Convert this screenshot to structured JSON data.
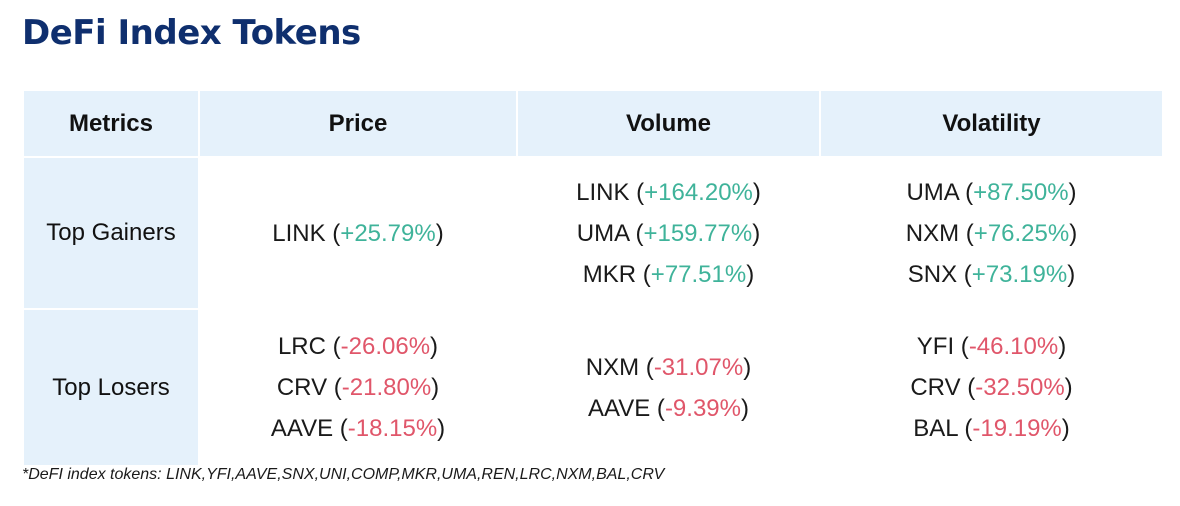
{
  "title": "DeFi Index Tokens",
  "colors": {
    "title": "#0f2f6e",
    "header_bg": "#e5f1fb",
    "positive": "#3fb39a",
    "negative": "#e0566a"
  },
  "table": {
    "headers": [
      "Metrics",
      "Price",
      "Volume",
      "Volatility"
    ],
    "rows": [
      {
        "label": "Top Gainers",
        "type": "gain",
        "price": [
          {
            "token": "LINK",
            "change": "+25.79%"
          }
        ],
        "volume": [
          {
            "token": "LINK",
            "change": "+164.20%"
          },
          {
            "token": "UMA",
            "change": "+159.77%"
          },
          {
            "token": "MKR",
            "change": "+77.51%"
          }
        ],
        "volatility": [
          {
            "token": "UMA",
            "change": "+87.50%"
          },
          {
            "token": "NXM",
            "change": "+76.25%"
          },
          {
            "token": "SNX",
            "change": "+73.19%"
          }
        ]
      },
      {
        "label": "Top Losers",
        "type": "loss",
        "price": [
          {
            "token": "LRC",
            "change": "-26.06%"
          },
          {
            "token": "CRV",
            "change": "-21.80%"
          },
          {
            "token": "AAVE",
            "change": "-18.15%"
          }
        ],
        "volume": [
          {
            "token": "NXM",
            "change": "-31.07%"
          },
          {
            "token": "AAVE",
            "change": "-9.39%"
          }
        ],
        "volatility": [
          {
            "token": "YFI",
            "change": "-46.10%"
          },
          {
            "token": "CRV",
            "change": "-32.50%"
          },
          {
            "token": "BAL",
            "change": "-19.19%"
          }
        ]
      }
    ]
  },
  "footnote": "*DeFI index tokens: LINK,YFI,AAVE,SNX,UNI,COMP,MKR,UMA,REN,LRC,NXM,BAL,CRV"
}
